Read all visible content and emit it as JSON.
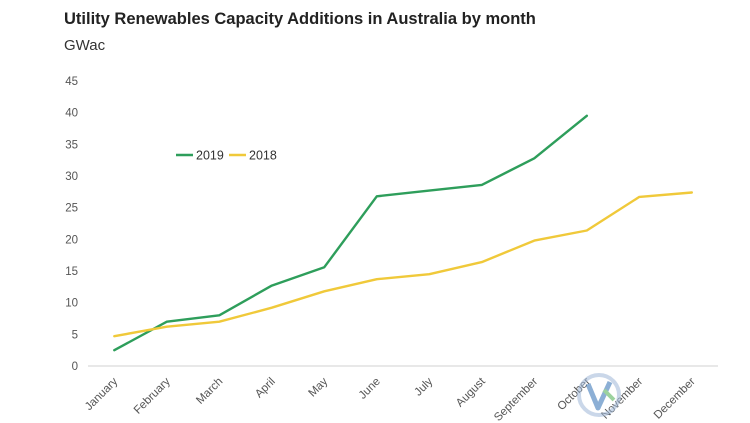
{
  "chart_data": {
    "type": "line",
    "title": "Utility Renewables Capacity Additions in Australia by month",
    "unit_label": "GWac",
    "categories": [
      "January",
      "February",
      "March",
      "April",
      "May",
      "June",
      "July",
      "August",
      "September",
      "October",
      "November",
      "December"
    ],
    "ylim": [
      0,
      45
    ],
    "yticks": [
      "0",
      "5",
      "10",
      "15",
      "20",
      "25",
      "30",
      "35",
      "40",
      "45"
    ],
    "grid": false,
    "legend_position": "top-left",
    "series": [
      {
        "name": "2019",
        "color": "#2e9e5b",
        "values": [
          2.5,
          7,
          8,
          12.7,
          15.6,
          26.8,
          27.7,
          28.6,
          32.8,
          39.5,
          null,
          null
        ]
      },
      {
        "name": "2018",
        "color": "#f0c93a",
        "values": [
          4.7,
          6.2,
          7,
          9.2,
          11.8,
          13.7,
          14.5,
          16.4,
          19.8,
          21.4,
          26.7,
          27.4
        ]
      }
    ]
  }
}
